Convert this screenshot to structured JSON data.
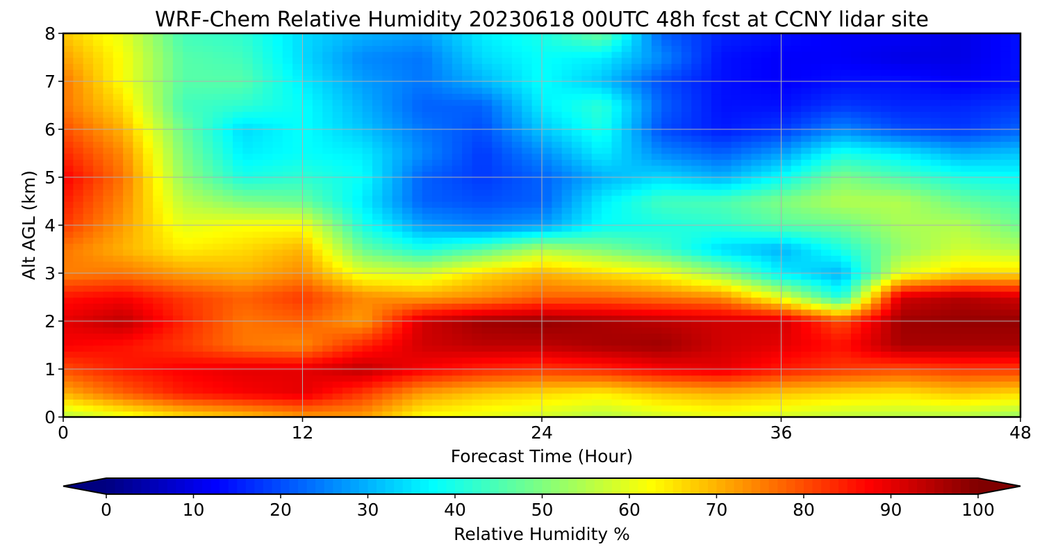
{
  "chart_data": {
    "type": "heatmap",
    "title": "WRF-Chem Relative Humidity 20230618 00UTC 48h fcst at CCNY lidar site",
    "xlabel": "Forecast Time (Hour)",
    "ylabel": "Alt AGL (km)",
    "xlim": [
      0,
      48
    ],
    "ylim": [
      0,
      8
    ],
    "xticks": [
      0,
      12,
      24,
      36,
      48
    ],
    "yticks": [
      0,
      1,
      2,
      3,
      4,
      5,
      6,
      7,
      8
    ],
    "grid": true,
    "colormap": "jet",
    "colorbar": {
      "label": "Relative Humidity %",
      "range": [
        0,
        100
      ],
      "ticks": [
        0,
        10,
        20,
        30,
        40,
        50,
        60,
        70,
        80,
        90,
        100
      ],
      "extend": "both",
      "orientation": "horizontal",
      "placement": "bottom"
    },
    "x": [
      0,
      3,
      6,
      9,
      12,
      15,
      18,
      21,
      24,
      27,
      30,
      33,
      36,
      39,
      42,
      45,
      48
    ],
    "y": [
      0,
      0.5,
      1,
      1.5,
      2,
      2.5,
      3,
      3.5,
      4,
      4.5,
      5,
      5.5,
      6,
      6.5,
      7,
      7.5,
      8
    ],
    "values": [
      [
        55,
        60,
        65,
        68,
        72,
        72,
        62,
        60,
        58,
        55,
        58,
        60,
        58,
        56,
        55,
        55,
        52
      ],
      [
        70,
        78,
        85,
        88,
        90,
        82,
        72,
        68,
        66,
        64,
        68,
        70,
        68,
        66,
        65,
        68,
        66
      ],
      [
        80,
        85,
        88,
        90,
        90,
        94,
        88,
        84,
        82,
        84,
        88,
        90,
        85,
        82,
        80,
        82,
        82
      ],
      [
        88,
        86,
        82,
        76,
        74,
        84,
        92,
        94,
        94,
        96,
        97,
        92,
        90,
        86,
        96,
        96,
        96
      ],
      [
        90,
        94,
        84,
        76,
        78,
        72,
        92,
        97,
        98,
        96,
        94,
        92,
        92,
        80,
        97,
        98,
        98
      ],
      [
        86,
        88,
        82,
        78,
        82,
        74,
        72,
        74,
        78,
        78,
        76,
        74,
        60,
        40,
        92,
        95,
        92
      ],
      [
        75,
        76,
        72,
        70,
        74,
        60,
        58,
        66,
        70,
        66,
        62,
        52,
        36,
        30,
        60,
        66,
        66
      ],
      [
        76,
        70,
        64,
        66,
        70,
        48,
        40,
        46,
        55,
        50,
        44,
        34,
        30,
        40,
        52,
        58,
        55
      ],
      [
        82,
        72,
        60,
        62,
        62,
        40,
        28,
        25,
        28,
        38,
        40,
        42,
        46,
        48,
        54,
        55,
        48
      ],
      [
        85,
        74,
        56,
        50,
        48,
        36,
        22,
        20,
        22,
        36,
        44,
        45,
        50,
        55,
        55,
        48,
        44
      ],
      [
        88,
        76,
        52,
        40,
        42,
        38,
        22,
        18,
        22,
        30,
        34,
        30,
        38,
        50,
        45,
        40,
        38
      ],
      [
        84,
        74,
        50,
        36,
        38,
        36,
        26,
        18,
        26,
        36,
        26,
        22,
        28,
        40,
        36,
        30,
        32
      ],
      [
        80,
        70,
        48,
        34,
        38,
        32,
        24,
        20,
        32,
        40,
        20,
        15,
        18,
        26,
        20,
        18,
        22
      ],
      [
        76,
        66,
        44,
        42,
        38,
        30,
        22,
        22,
        36,
        42,
        22,
        14,
        14,
        18,
        16,
        16,
        18
      ],
      [
        76,
        62,
        46,
        46,
        36,
        28,
        24,
        30,
        38,
        32,
        20,
        14,
        12,
        14,
        14,
        12,
        14
      ],
      [
        72,
        62,
        46,
        44,
        34,
        26,
        24,
        34,
        38,
        36,
        26,
        14,
        12,
        12,
        10,
        10,
        14
      ],
      [
        68,
        60,
        44,
        42,
        34,
        30,
        28,
        36,
        40,
        48,
        22,
        16,
        14,
        12,
        12,
        10,
        14
      ]
    ]
  }
}
